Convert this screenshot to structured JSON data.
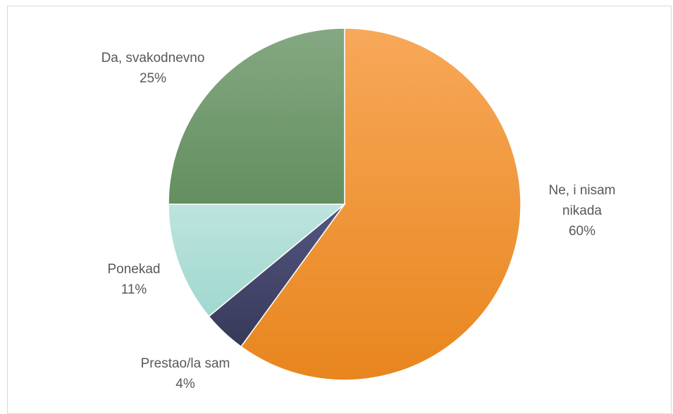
{
  "chart_data": {
    "type": "pie",
    "title": "",
    "slices": [
      {
        "label": "Ne, i nisam nikada",
        "label_lines": [
          "Ne, i nisam",
          "nikada"
        ],
        "value": 60,
        "value_label": "60%",
        "color": "#F4952B",
        "color_light": "#F7A859",
        "color_dark": "#E8861E"
      },
      {
        "label": "Prestao/la sam",
        "label_lines": [
          "Prestao/la sam"
        ],
        "value": 4,
        "value_label": "4%",
        "color": "#414468",
        "color_light": "#545780",
        "color_dark": "#363959"
      },
      {
        "label": "Ponekad",
        "label_lines": [
          "Ponekad"
        ],
        "value": 11,
        "value_label": "11%",
        "color": "#ACDDD6",
        "color_light": "#BEE4DE",
        "color_dark": "#9FD8CF"
      },
      {
        "label": "Da, svakodnevno",
        "label_lines": [
          "Da, svakodnevno"
        ],
        "value": 25,
        "value_label": "25%",
        "color": "#6F9C6C",
        "color_light": "#85A882",
        "color_dark": "#628F5F"
      }
    ],
    "start_angle_deg": 0,
    "direction": "clockwise",
    "legend": "none",
    "data_labels": "category-and-percent"
  }
}
